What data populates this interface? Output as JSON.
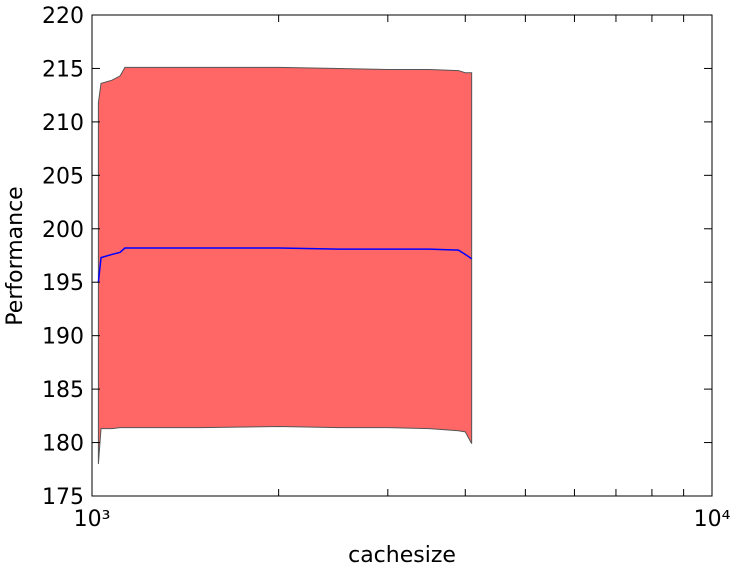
{
  "chart_data": {
    "type": "line",
    "xlabel": "cachesize",
    "ylabel": "Performance",
    "xscale": "log",
    "x": [
      1024,
      1034,
      1077,
      1110,
      1130,
      1500,
      2000,
      2500,
      3000,
      3500,
      3900,
      4000,
      4096
    ],
    "values": [
      195,
      197.3,
      197.6,
      197.8,
      198.2,
      198.2,
      198.2,
      198.1,
      198.1,
      198.1,
      198.0,
      197.6,
      197.2
    ],
    "upper": [
      211.8,
      213.6,
      213.9,
      214.3,
      215.1,
      215.1,
      215.1,
      215.0,
      214.9,
      214.9,
      214.8,
      214.6,
      214.6
    ],
    "lower": [
      178,
      181.3,
      181.3,
      181.4,
      181.4,
      181.4,
      181.5,
      181.4,
      181.4,
      181.3,
      181.1,
      181.0,
      179.9
    ],
    "color": "#0000ff",
    "band_color": "#ff6666",
    "band_edge_color": "#555555",
    "xlim": [
      1000,
      10000
    ],
    "xticks": [
      {
        "value": 1000,
        "label": "10³"
      },
      {
        "value": 10000,
        "label": "10⁴"
      }
    ],
    "xminorticks": [
      2000,
      3000,
      4000,
      5000,
      6000,
      7000,
      8000,
      9000
    ],
    "ylim": [
      175,
      220
    ],
    "yticks": [
      175,
      180,
      185,
      190,
      195,
      200,
      205,
      210,
      215,
      220
    ]
  }
}
